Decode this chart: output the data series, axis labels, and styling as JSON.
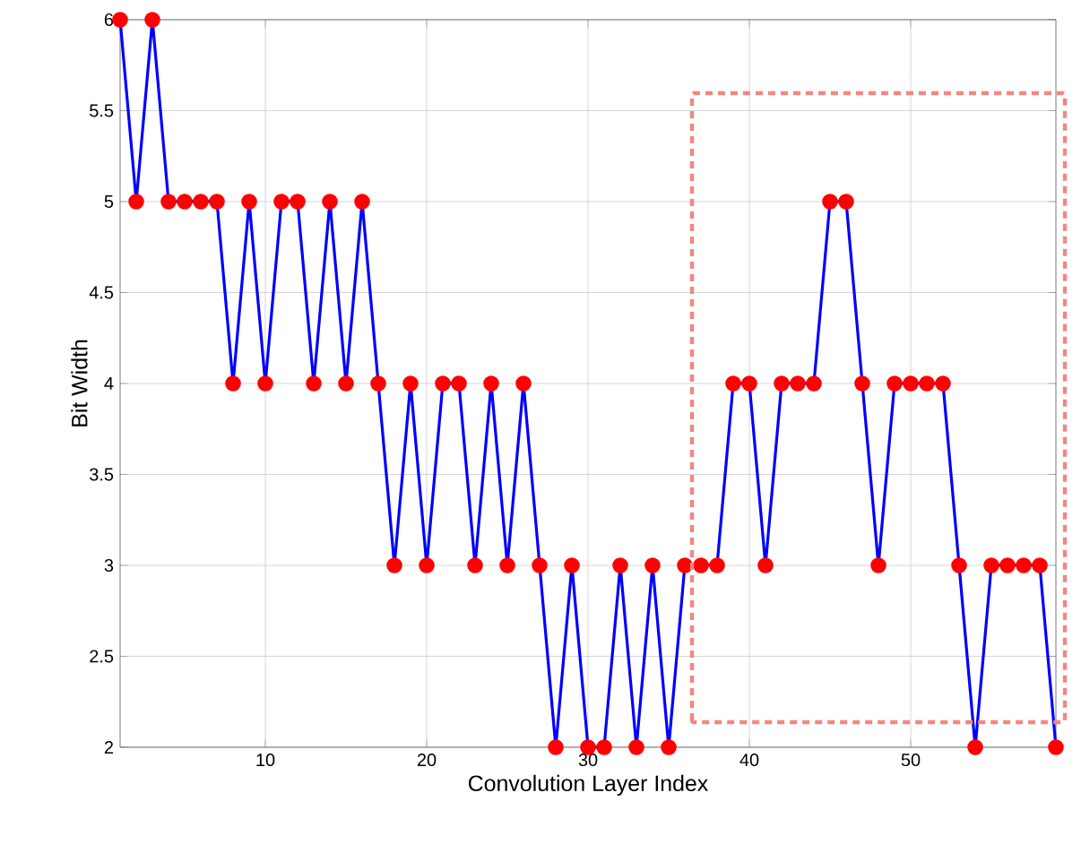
{
  "chart_data": {
    "type": "line",
    "xlabel": "Convolution Layer Index",
    "ylabel": "Bit Width",
    "x": [
      1,
      2,
      3,
      4,
      5,
      6,
      7,
      8,
      9,
      10,
      11,
      12,
      13,
      14,
      15,
      16,
      17,
      18,
      19,
      20,
      21,
      22,
      23,
      24,
      25,
      26,
      27,
      28,
      29,
      30,
      31,
      32,
      33,
      34,
      35,
      36,
      37,
      38,
      39,
      40,
      41,
      42,
      43,
      44,
      45,
      46,
      47,
      48,
      49,
      50,
      51,
      52,
      53,
      54,
      55,
      56,
      57,
      58,
      59
    ],
    "series": [
      {
        "color": "#0000ff",
        "values": [
          6,
          5,
          6,
          5,
          5,
          5,
          5,
          4,
          5,
          4,
          5,
          5,
          4,
          5,
          4,
          5,
          4,
          3,
          4,
          3,
          4,
          4,
          3,
          4,
          3,
          4,
          3,
          2,
          3,
          2,
          2,
          3,
          2,
          3,
          2,
          3,
          3,
          3,
          4,
          4,
          3,
          4,
          4,
          4,
          5,
          5,
          4,
          3,
          4,
          4,
          4,
          4,
          3,
          2,
          3,
          3,
          3,
          3,
          2
        ]
      }
    ],
    "xlim": [
      1,
      59
    ],
    "ylim": [
      2,
      6
    ],
    "xticks": [
      10,
      20,
      30,
      40,
      50
    ],
    "yticks": [
      2,
      2.5,
      3,
      3.5,
      4,
      4.5,
      5,
      5.5,
      6
    ],
    "grid": true,
    "marker": "circle",
    "line_style": "solid"
  }
}
